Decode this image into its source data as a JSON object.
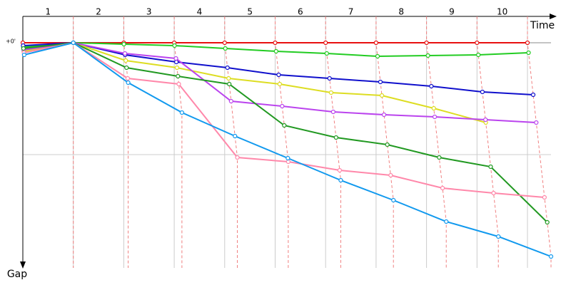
{
  "chart_data": {
    "type": "line",
    "x_label": "Time",
    "y_label": "Gap",
    "lap_labels": [
      "1",
      "2",
      "3",
      "4",
      "5",
      "6",
      "7",
      "8",
      "9",
      "10"
    ],
    "ylim": [
      0,
      300
    ],
    "yticks": [
      {
        "value": 0,
        "label": "+0'"
      },
      {
        "value": 157,
        "label": null
      }
    ],
    "grid": true,
    "series": [
      {
        "color": "#e81010",
        "values": [
          0,
          0,
          0,
          0,
          0,
          0,
          0,
          0,
          0,
          0,
          0
        ]
      },
      {
        "color": "#22cc22",
        "values": [
          6,
          0,
          2,
          4,
          8,
          12,
          15,
          19,
          18,
          17,
          14
        ]
      },
      {
        "color": "#1010cc",
        "values": [
          4,
          0,
          17,
          27,
          35,
          45,
          50,
          55,
          61,
          69,
          73
        ]
      },
      {
        "color": "#dddd22",
        "values": [
          12,
          0,
          25,
          35,
          50,
          58,
          70,
          74,
          92,
          112,
          null
        ]
      },
      {
        "color": "#bb44ee",
        "values": [
          10,
          0,
          15,
          22,
          82,
          89,
          97,
          101,
          104,
          108,
          112
        ]
      },
      {
        "color": "#229922",
        "values": [
          8,
          0,
          35,
          47,
          58,
          116,
          133,
          143,
          161,
          174,
          252
        ]
      },
      {
        "color": "#ff88aa",
        "values": [
          14,
          0,
          50,
          58,
          161,
          167,
          179,
          186,
          204,
          211,
          217
        ]
      },
      {
        "color": "#1199ee",
        "values": [
          17,
          0,
          56,
          98,
          131,
          162,
          193,
          221,
          251,
          272,
          300
        ]
      }
    ]
  }
}
